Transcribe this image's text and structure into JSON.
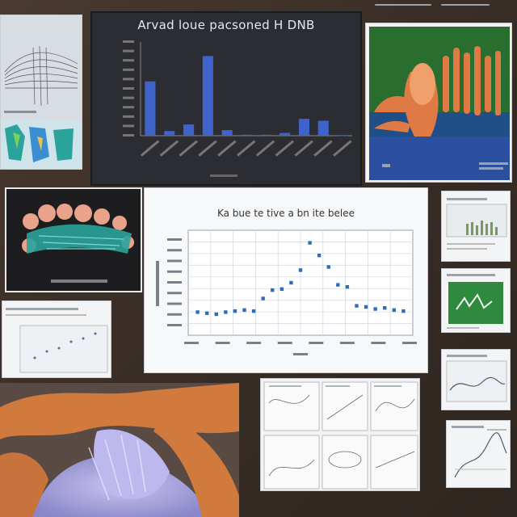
{
  "bar_panel": {
    "title": "Arvad loue pacsoned H DNB"
  },
  "line_panel": {
    "title": "Ka bue te tive a bn ite belee"
  },
  "colors": {
    "wall": "#3b2f27",
    "bar": "#3f63c8",
    "point": "#2f6db5",
    "coral_orange": "#e07a45",
    "coral_teal": "#2aa39b",
    "green_card": "#2e8b3e",
    "blue_card": "#2c4fa0"
  },
  "chart_data": [
    {
      "type": "bar",
      "title": "Arvad loue pacsoned H DNB",
      "categories": [
        "c1",
        "c2",
        "c3",
        "c4",
        "c5",
        "c6",
        "c7",
        "c8",
        "c9",
        "c10",
        "c11"
      ],
      "values": [
        58,
        5,
        12,
        85,
        6,
        1,
        1,
        3,
        18,
        16,
        0
      ],
      "ylim": [
        0,
        100
      ]
    },
    {
      "type": "scatter",
      "title": "Ka bue te tive a bn ite belee",
      "x": [
        1,
        2,
        3,
        4,
        5,
        6,
        7,
        8,
        9,
        10,
        11,
        12,
        13,
        14,
        15,
        16,
        17,
        18,
        19,
        20,
        21,
        22,
        23
      ],
      "y": [
        22,
        21,
        20,
        22,
        23,
        24,
        23,
        35,
        43,
        44,
        50,
        62,
        88,
        76,
        65,
        48,
        46,
        28,
        27,
        25,
        26,
        24,
        23
      ],
      "xlim": [
        0,
        24
      ],
      "ylim": [
        0,
        100
      ],
      "grid": true
    }
  ]
}
